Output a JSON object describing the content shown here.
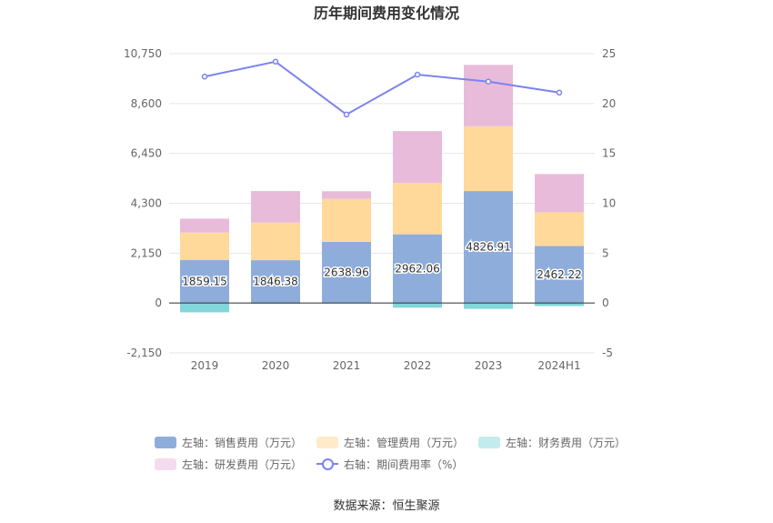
{
  "chart_data": {
    "type": "bar",
    "title": "历年期间费用变化情况",
    "categories": [
      "2019",
      "2020",
      "2021",
      "2022",
      "2023",
      "2024H1"
    ],
    "left_axis": {
      "min": -2150,
      "max": 10750,
      "ticks": [
        "10,750",
        "8,600",
        "6,450",
        "4,300",
        "2,150",
        "0",
        "-2,150"
      ],
      "tick_values": [
        10750,
        8600,
        6450,
        4300,
        2150,
        0,
        -2150
      ]
    },
    "right_axis": {
      "min": -5,
      "max": 25,
      "ticks": [
        "25",
        "20",
        "15",
        "10",
        "5",
        "0",
        "-5"
      ],
      "tick_values": [
        25,
        20,
        15,
        10,
        5,
        0,
        -5
      ]
    },
    "series": [
      {
        "name": "左轴：销售费用（万元）",
        "kind": "bar",
        "color": "#8eaddb",
        "values": [
          1859.15,
          1846.38,
          2638.96,
          2962.06,
          4826.91,
          2462.22
        ],
        "labels": [
          "1859.15",
          "1846.38",
          "2638.96",
          "2962.06",
          "4826.91",
          "2462.22"
        ]
      },
      {
        "name": "左轴：管理费用（万元）",
        "kind": "bar",
        "color": "#ffd99a",
        "values": [
          1180,
          1620,
          1850,
          2220,
          2790,
          1450
        ]
      },
      {
        "name": "左轴：财务费用（万元）",
        "kind": "bar",
        "color": "#83d6d9",
        "values": [
          -400,
          -30,
          -20,
          -200,
          -250,
          -130
        ]
      },
      {
        "name": "左轴：研发费用（万元）",
        "kind": "bar",
        "color": "#e9bbdb",
        "values": [
          600,
          1360,
          330,
          2230,
          2650,
          1650
        ]
      },
      {
        "name": "右轴：期间费用率（%）",
        "kind": "line",
        "color": "#7b83ee",
        "values": [
          22.7,
          24.2,
          18.9,
          22.9,
          22.2,
          21.1
        ]
      }
    ],
    "legend_placement": "bottom",
    "grid": true
  },
  "legend_swatch_colors": [
    "#8eaddb",
    "#ffebc9",
    "#c2ecee",
    "#f4dcee"
  ],
  "source": "数据来源：恒生聚源"
}
